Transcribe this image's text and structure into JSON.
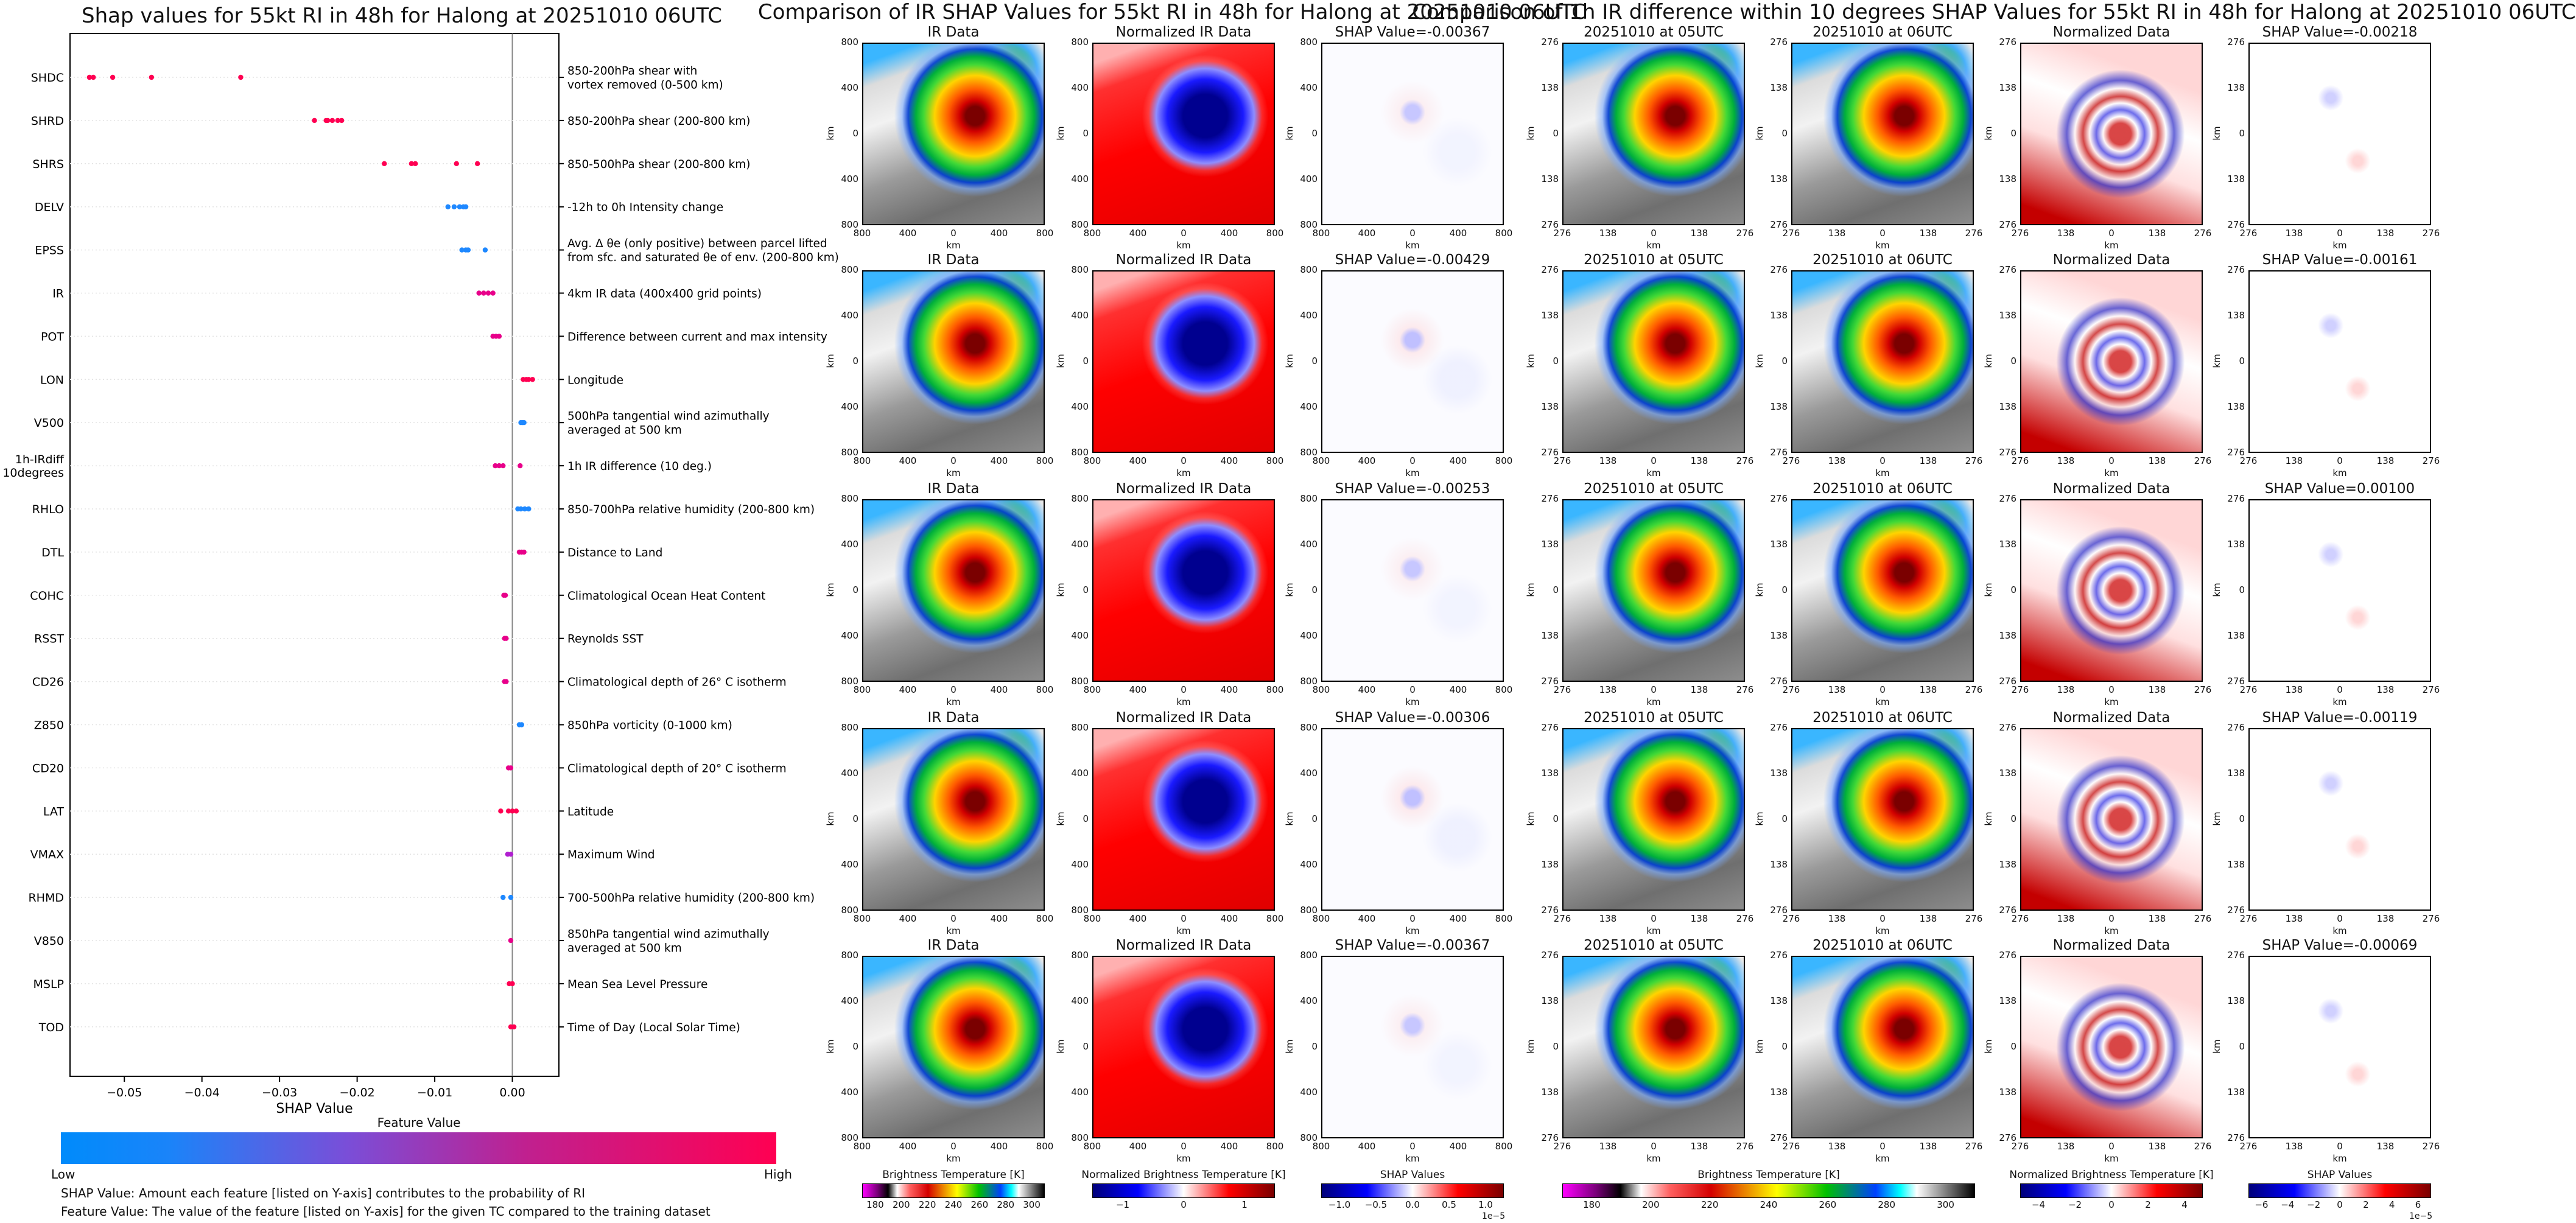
{
  "left_panel": {
    "title": "Shap values for 55kt RI in 48h for Halong at 20251010 06UTC",
    "xlabel": "SHAP Value",
    "legend_title": "Feature Value",
    "legend_low": "Low",
    "legend_high": "High",
    "note1": "SHAP Value: Amount each feature [listed on Y-axis] contributes to the probability of RI",
    "note2": "Feature Value: The value of the feature [listed on Y-axis] for the given TC compared to the training dataset"
  },
  "ir_section": {
    "title": "Comparison of IR SHAP Values for 55kt RI in 48h for Halong at 20251010 06UTC",
    "col_titles": [
      "IR Data",
      "Normalized IR Data"
    ],
    "shap_titles": [
      "SHAP Value=-0.00367",
      "SHAP Value=-0.00429",
      "SHAP Value=-0.00253",
      "SHAP Value=-0.00306",
      "SHAP Value=-0.00367"
    ],
    "ticks": [
      "800",
      "400",
      "0",
      "400",
      "800"
    ],
    "xticks": [
      "800",
      "400",
      "0",
      "400",
      "800"
    ],
    "axis_label": "km"
  },
  "diff_section": {
    "title": "Comparison of 1h IR difference within 10 degrees SHAP Values for 55kt RI in 48h for Halong at 20251010 06UTC",
    "col_titles": [
      "20251010 at 05UTC",
      "20251010 at 06UTC",
      "Normalized Data"
    ],
    "shap_titles": [
      "SHAP Value=-0.00218",
      "SHAP Value=-0.00161",
      "SHAP Value=0.00100",
      "SHAP Value=-0.00119",
      "SHAP Value=-0.00069"
    ],
    "ticks": [
      "276",
      "138",
      "0",
      "138",
      "276"
    ],
    "axis_label": "km"
  },
  "colorbars": [
    {
      "label": "Brightness Temperature [K]",
      "ticks": [
        "180",
        "200",
        "220",
        "240",
        "260",
        "280",
        "300"
      ]
    },
    {
      "label": "Normalized Brightness Temperature [K]",
      "ticks": [
        "−1",
        "0",
        "1"
      ]
    },
    {
      "label": "SHAP Values",
      "ticks": [
        "−1.0",
        "−0.5",
        "0.0",
        "0.5",
        "1.0"
      ],
      "exponent": "1e−5"
    },
    {
      "label": "Brightness Temperature [K]",
      "ticks": [
        "180",
        "200",
        "220",
        "240",
        "260",
        "280",
        "300"
      ]
    },
    {
      "label": "Normalized Brightness Temperature [K]",
      "ticks": [
        "−4",
        "−2",
        "0",
        "2",
        "4"
      ]
    },
    {
      "label": "SHAP Values",
      "ticks": [
        "−6",
        "−4",
        "−2",
        "0",
        "2",
        "4",
        "6"
      ],
      "exponent": "1e−5"
    }
  ],
  "chart_data": {
    "type": "scatter",
    "title": "Shap values for 55kt RI in 48h for Halong at 20251010 06UTC",
    "xlabel": "SHAP Value",
    "xlim": [
      -0.057,
      0.006
    ],
    "xticks": [
      -0.05,
      -0.04,
      -0.03,
      -0.02,
      -0.01,
      0.0
    ],
    "xtick_labels": [
      "−0.05",
      "−0.04",
      "−0.03",
      "−0.02",
      "−0.01",
      "0.00"
    ],
    "features": [
      {
        "name": "SHDC",
        "desc": "850-200hPa shear with\nvortex removed (0-500 km)",
        "color": "#ff0052",
        "shap": [
          -0.0545,
          -0.054,
          -0.0515,
          -0.0465,
          -0.035
        ]
      },
      {
        "name": "SHRD",
        "desc": "850-200hPa shear (200-800 km)",
        "color": "#ff0052",
        "shap": [
          -0.0255,
          -0.024,
          -0.0238,
          -0.0232,
          -0.0225,
          -0.022
        ]
      },
      {
        "name": "SHRS",
        "desc": "850-500hPa shear (200-800 km)",
        "color": "#ff0052",
        "shap": [
          -0.0165,
          -0.013,
          -0.0125,
          -0.0072,
          -0.0045
        ]
      },
      {
        "name": "DELV",
        "desc": "-12h to 0h Intensity change",
        "color": "#1e88ff",
        "shap": [
          -0.0083,
          -0.0075,
          -0.0068,
          -0.0063,
          -0.006
        ]
      },
      {
        "name": "EPSS",
        "desc": "Avg. Δ θe (only positive) between parcel lifted\nfrom sfc. and saturated θe of env. (200-800 km)",
        "color": "#1e88ff",
        "shap": [
          -0.0065,
          -0.006,
          -0.0057,
          -0.0035
        ]
      },
      {
        "name": "IR",
        "desc": "4km IR data (400x400 grid points)",
        "color": "#e8008a",
        "shap": [
          -0.0043,
          -0.0037,
          -0.0031,
          -0.0025
        ]
      },
      {
        "name": "POT",
        "desc": "Difference between current and max intensity",
        "color": "#e8008a",
        "shap": [
          -0.0025,
          -0.0021,
          -0.0017
        ]
      },
      {
        "name": "LON",
        "desc": "Longitude",
        "color": "#ff0052",
        "shap": [
          0.0014,
          0.0018,
          0.0021,
          0.0026
        ]
      },
      {
        "name": "V500",
        "desc": "500hPa tangential wind azimuthally\naveraged at 500 km",
        "color": "#1e88ff",
        "shap": [
          0.0011,
          0.0013,
          0.0015
        ]
      },
      {
        "name": "1h-IRdiff\n10degrees",
        "desc": "1h IR difference (10 deg.)",
        "color": "#e8008a",
        "shap": [
          -0.0022,
          -0.0017,
          -0.0012,
          0.001
        ]
      },
      {
        "name": "RHLO",
        "desc": "850-700hPa relative humidity (200-800 km)",
        "color": "#1e88ff",
        "shap": [
          0.0007,
          0.0011,
          0.0016,
          0.0021
        ]
      },
      {
        "name": "DTL",
        "desc": "Distance to Land",
        "color": "#e8008a",
        "shap": [
          0.0009,
          0.0012,
          0.0015
        ]
      },
      {
        "name": "COHC",
        "desc": "Climatological Ocean Heat Content",
        "color": "#e8008a",
        "shap": [
          -0.0011,
          -0.0009
        ]
      },
      {
        "name": "RSST",
        "desc": "Reynolds SST",
        "color": "#e8008a",
        "shap": [
          -0.001,
          -0.0008
        ]
      },
      {
        "name": "CD26",
        "desc": "Climatological depth of 26° C isotherm",
        "color": "#e8008a",
        "shap": [
          -0.001,
          -0.0008
        ]
      },
      {
        "name": "Z850",
        "desc": "850hPa vorticity (0-1000 km)",
        "color": "#1e88ff",
        "shap": [
          0.0009,
          0.0012
        ]
      },
      {
        "name": "CD20",
        "desc": "Climatological depth of 20° C isotherm",
        "color": "#e8008a",
        "shap": [
          -0.0005,
          -0.0002
        ]
      },
      {
        "name": "LAT",
        "desc": "Latitude",
        "color": "#ff0052",
        "shap": [
          -0.0015,
          -0.0005,
          0.0,
          0.0005
        ]
      },
      {
        "name": "VMAX",
        "desc": "Maximum Wind",
        "color": "#b01fd0",
        "shap": [
          -0.0006,
          -0.0002
        ]
      },
      {
        "name": "RHMD",
        "desc": "700-500hPa relative humidity (200-800 km)",
        "color": "#1e88ff",
        "shap": [
          -0.0012,
          -0.0002
        ]
      },
      {
        "name": "V850",
        "desc": "850hPa tangential wind azimuthally\naveraged at 500 km",
        "color": "#e8008a",
        "shap": [
          -0.0002
        ]
      },
      {
        "name": "MSLP",
        "desc": "Mean Sea Level Pressure",
        "color": "#ff0052",
        "shap": [
          -0.0004,
          0.0
        ]
      },
      {
        "name": "TOD",
        "desc": "Time of Day (Local Solar Time)",
        "color": "#ff0052",
        "shap": [
          -0.0002,
          0.0002
        ]
      }
    ]
  }
}
